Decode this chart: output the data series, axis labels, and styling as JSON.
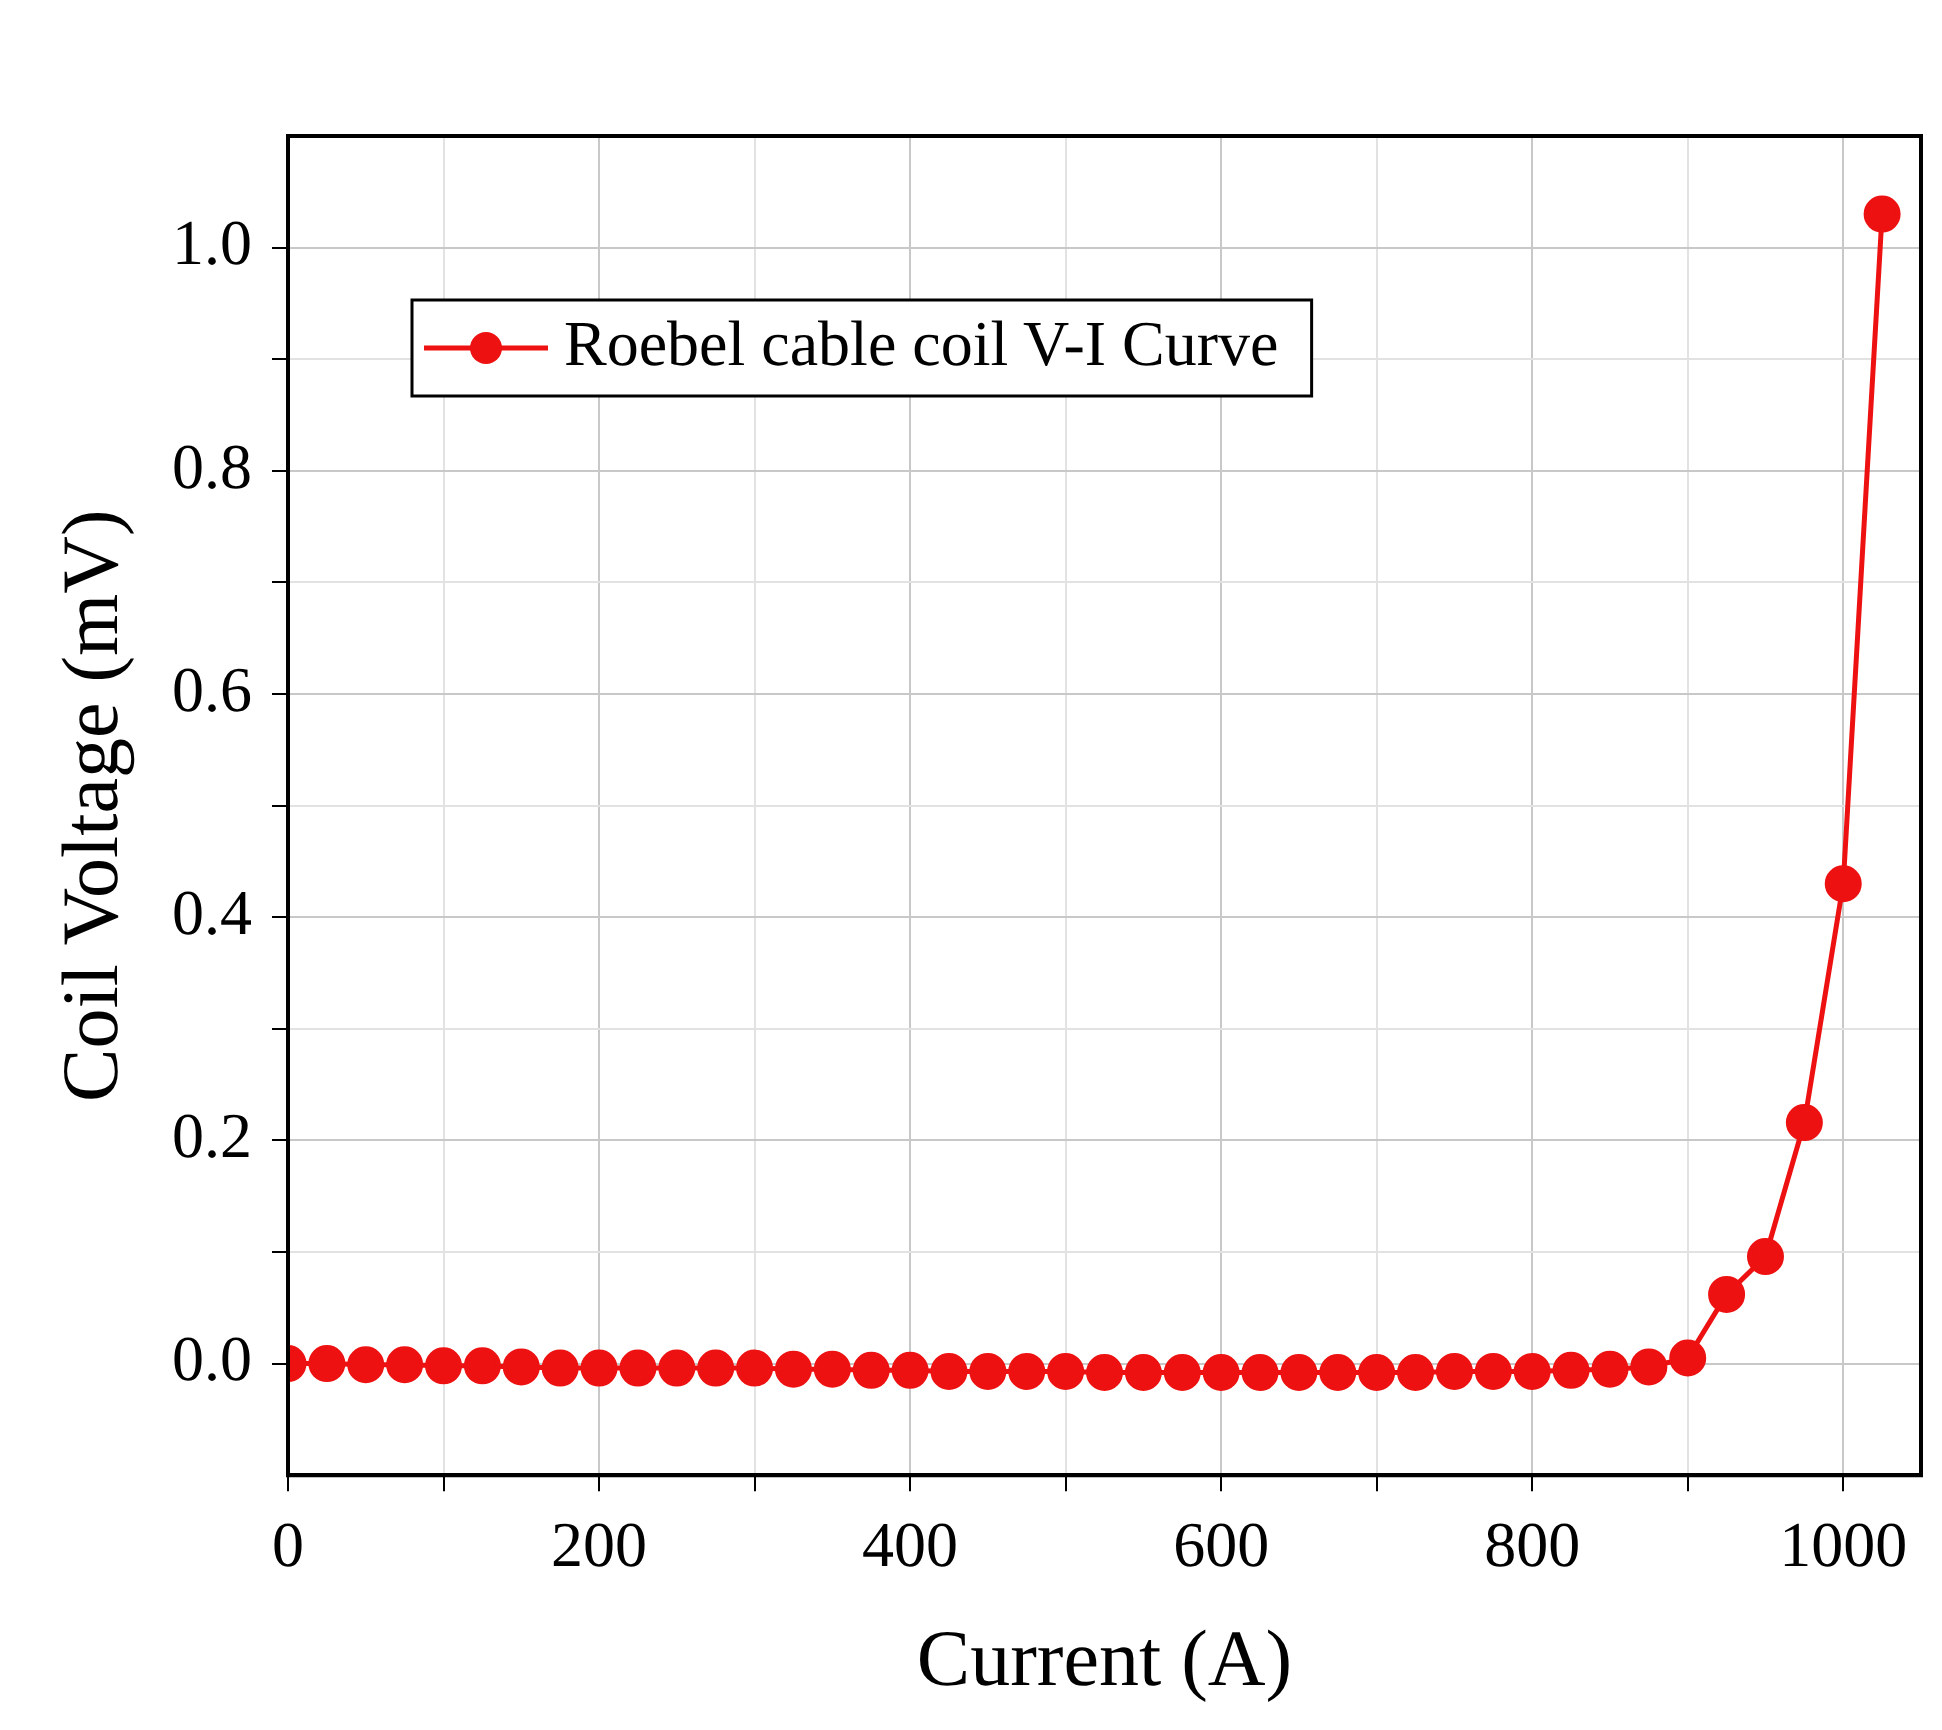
{
  "chart_data": {
    "type": "line",
    "xlabel": "Current (A)",
    "ylabel": "Coil Voltage (mV)",
    "x": [
      0,
      25,
      50,
      75,
      100,
      125,
      150,
      175,
      200,
      225,
      250,
      275,
      300,
      325,
      350,
      375,
      400,
      425,
      450,
      475,
      500,
      525,
      550,
      575,
      600,
      625,
      650,
      675,
      700,
      725,
      750,
      775,
      800,
      825,
      850,
      875,
      900,
      925,
      950,
      975,
      1000,
      1025
    ],
    "series": [
      {
        "name": "Roebel cable coil V-I Curve",
        "color": "#ee1111",
        "values": [
          0,
          0,
          -0.001,
          -0.001,
          -0.002,
          -0.002,
          -0.003,
          -0.004,
          -0.004,
          -0.004,
          -0.004,
          -0.004,
          -0.004,
          -0.005,
          -0.005,
          -0.006,
          -0.006,
          -0.007,
          -0.007,
          -0.007,
          -0.007,
          -0.008,
          -0.008,
          -0.008,
          -0.008,
          -0.008,
          -0.008,
          -0.008,
          -0.008,
          -0.008,
          -0.007,
          -0.007,
          -0.007,
          -0.006,
          -0.005,
          -0.003,
          0.005,
          0.062,
          0.096,
          0.216,
          0.43,
          1.03
        ]
      }
    ],
    "xlim": [
      0,
      1050
    ],
    "ylim": [
      -0.1,
      1.1
    ],
    "xticks": [
      0,
      {
        "value": 100,
        "label": null
      },
      200,
      {
        "value": 300,
        "label": null
      },
      400,
      {
        "value": 500,
        "label": null
      },
      600,
      {
        "value": 700,
        "label": null
      },
      800,
      {
        "value": 900,
        "label": null
      },
      1000
    ],
    "yticks": [
      {
        "value": 0,
        "label": "0.0"
      },
      {
        "value": 0.1,
        "label": null
      },
      {
        "value": 0.2,
        "label": "0.2"
      },
      {
        "value": 0.3,
        "label": null
      },
      {
        "value": 0.4,
        "label": "0.4"
      },
      {
        "value": 0.5,
        "label": null
      },
      {
        "value": 0.6,
        "label": "0.6"
      },
      {
        "value": 0.7,
        "label": null
      },
      {
        "value": 0.8,
        "label": "0.8"
      },
      {
        "value": 0.9,
        "label": null
      },
      {
        "value": 1,
        "label": "1.0"
      }
    ],
    "grid": true,
    "legend": "top left",
    "marker": "circle",
    "line_style": "solid"
  }
}
